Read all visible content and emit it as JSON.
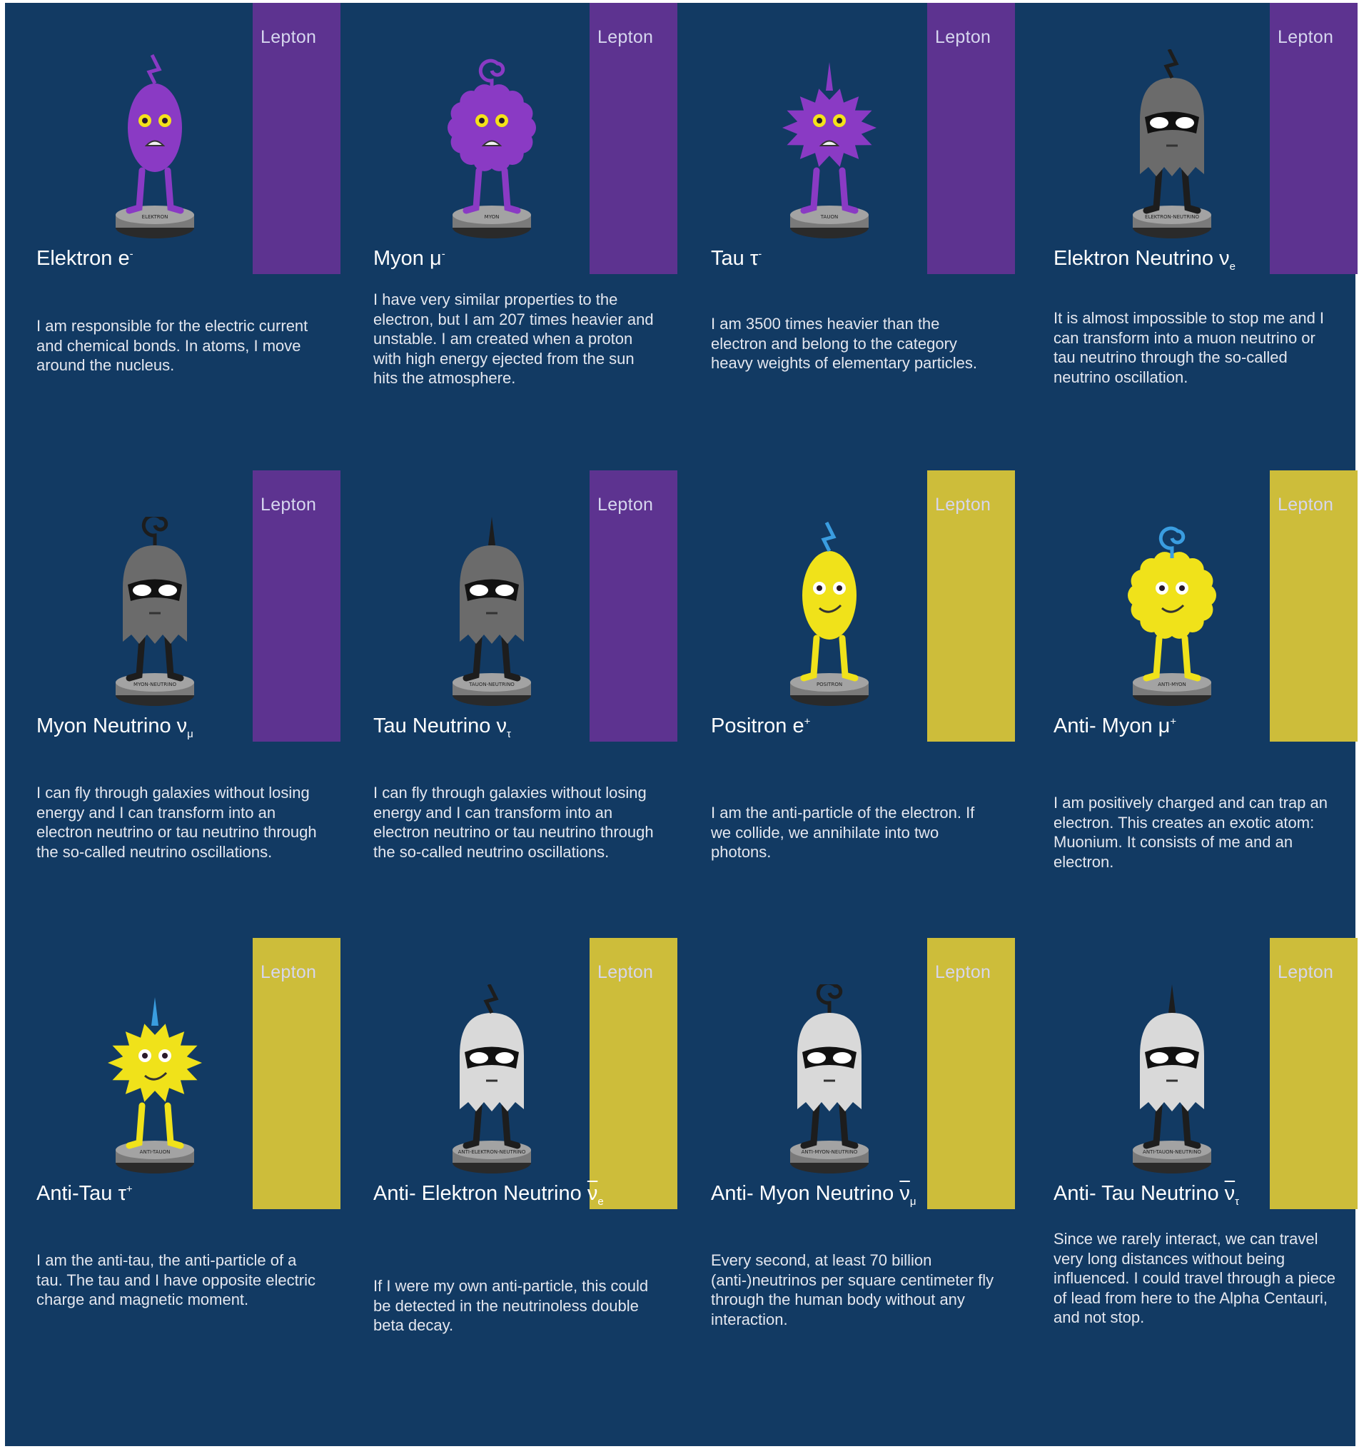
{
  "band_colors": {
    "lepton": "#5d3390",
    "antilepton": "#cdbd3a"
  },
  "background_color": "#123a63",
  "cards": [
    {
      "category": "Lepton",
      "name": "Elektron e",
      "sup": "-",
      "sub": "",
      "overline": "",
      "figure_label": "ELEKTRON",
      "figure_kind": "oval",
      "figure_color": "#8a3ac4",
      "antenna": "bolt",
      "mask": false,
      "description": "I am responsible for the electric current and chemical bonds. In atoms, I move around the nucleus."
    },
    {
      "category": "Lepton",
      "name": "Myon μ",
      "sup": "-",
      "sub": "",
      "overline": "",
      "figure_label": "MYON",
      "figure_kind": "fuzzy",
      "figure_color": "#8a3ac4",
      "antenna": "curl",
      "mask": false,
      "description": "I have very similar properties to the electron, but I am 207 times heavier and unstable. I am created when a proton with high energy ejected from the sun hits the atmosphere."
    },
    {
      "category": "Lepton",
      "name": "Tau τ",
      "sup": "-",
      "sub": "",
      "overline": "",
      "figure_label": "TAUON",
      "figure_kind": "spiky",
      "figure_color": "#8a3ac4",
      "antenna": "spike",
      "mask": false,
      "description": "I am 3500 times heavier than the electron and belong to the category heavy weights of elementary particles."
    },
    {
      "category": "Lepton",
      "name": "Elektron Neutrino ν",
      "sup": "",
      "sub": "e",
      "overline": "",
      "figure_label": "ELEKTRON-NEUTRINO",
      "figure_kind": "ghost",
      "figure_color": "#6b6b6b",
      "antenna": "bolt",
      "mask": true,
      "description": "It is almost impossible to stop me and I can transform into a muon neutrino or tau neutrino through the so-called neutrino oscillation."
    },
    {
      "category": "Lepton",
      "name": "Myon Neutrino ν",
      "sup": "",
      "sub": "μ",
      "overline": "",
      "figure_label": "MYON-NEUTRINO",
      "figure_kind": "ghost",
      "figure_color": "#6b6b6b",
      "antenna": "curl",
      "mask": true,
      "description": "I can fly through galaxies without losing energy and I can transform into an electron neutrino or tau neutrino through the so-called neutrino oscillations."
    },
    {
      "category": "Lepton",
      "name": "Tau Neutrino ν",
      "sup": "",
      "sub": "τ",
      "overline": "",
      "figure_label": "TAUON-NEUTRINO",
      "figure_kind": "ghost",
      "figure_color": "#6b6b6b",
      "antenna": "spike",
      "mask": true,
      "description": "I can fly through galaxies without losing energy and I can transform into an electron neutrino or tau neutrino through the so-called neutrino oscillations."
    },
    {
      "category": "Lepton",
      "name": "Positron e",
      "sup": "+",
      "sub": "",
      "overline": "",
      "figure_label": "POSITRON",
      "figure_kind": "oval",
      "figure_color": "#f0e21a",
      "antenna": "bolt",
      "mask": false,
      "description": "I am the anti-particle of the electron. If we collide, we annihilate into two photons."
    },
    {
      "category": "Lepton",
      "name": "Anti- Myon μ",
      "sup": "+",
      "sub": "",
      "overline": "",
      "figure_label": "ANTI-MYON",
      "figure_kind": "fuzzy",
      "figure_color": "#f0e21a",
      "antenna": "curl",
      "mask": false,
      "description": "I am positively charged and can trap an electron. This creates an exotic atom: Muonium. It consists of me and an electron."
    },
    {
      "category": "Lepton",
      "name": "Anti-Tau τ",
      "sup": "+",
      "sub": "",
      "overline": "",
      "figure_label": "ANTI-TAUON",
      "figure_kind": "spiky",
      "figure_color": "#f0e21a",
      "antenna": "spike",
      "mask": false,
      "description": "I am the anti-tau, the anti-particle of a tau. The tau and I have opposite electric charge and magnetic moment."
    },
    {
      "category": "Lepton",
      "name": "Anti- Elektron Neutrino ",
      "sup": "",
      "sub": "e",
      "overline": "ν",
      "figure_label": "ANTI-ELEKTRON-NEUTRINO",
      "figure_kind": "ghost",
      "figure_color": "#d9d9d9",
      "antenna": "bolt",
      "mask": true,
      "description": "If I were my own anti-particle, this could be detected in the neutrinoless double beta decay."
    },
    {
      "category": "Lepton",
      "name": "Anti- Myon Neutrino ",
      "sup": "",
      "sub": "μ",
      "overline": "ν",
      "figure_label": "ANTI-MYON-NEUTRINO",
      "figure_kind": "ghost",
      "figure_color": "#d9d9d9",
      "antenna": "curl",
      "mask": true,
      "description": "Every second, at least 70 billion (anti-)neutrinos per square centimeter fly through the human body without any interaction."
    },
    {
      "category": "Lepton",
      "name": "Anti- Tau Neutrino ",
      "sup": "",
      "sub": "τ",
      "overline": "ν",
      "figure_label": "ANTI-TAUON-NEUTRINO",
      "figure_kind": "ghost",
      "figure_color": "#d9d9d9",
      "antenna": "spike",
      "mask": true,
      "description": "Since we rarely interact, we can travel very long distances without being influenced. I could travel through a piece of lead from here to the Alpha Centauri, and not stop."
    }
  ]
}
